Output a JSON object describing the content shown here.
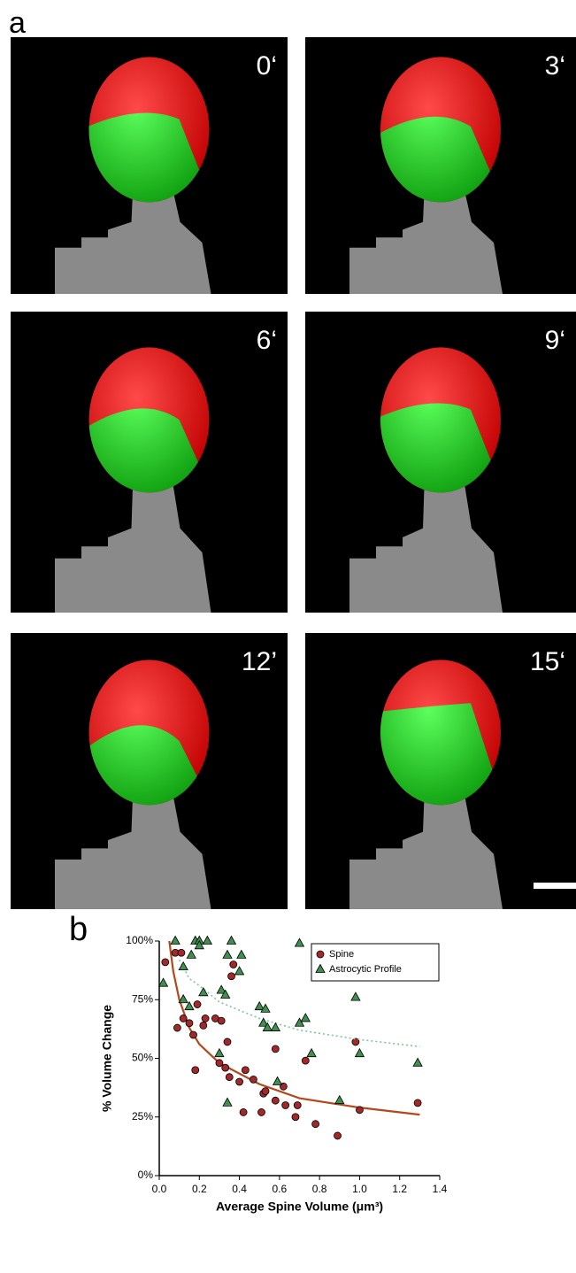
{
  "panel_labels": [
    "a",
    "b"
  ],
  "images": [
    {
      "label": "0‘"
    },
    {
      "label": "3‘"
    },
    {
      "label": "6‘"
    },
    {
      "label": "9‘"
    },
    {
      "label": "12’"
    },
    {
      "label": "15‘"
    }
  ],
  "chart_data": {
    "type": "scatter",
    "xlabel": "Average Spine Volume (μm³)",
    "ylabel": "% Volume Change",
    "xlim": [
      0,
      1.4
    ],
    "xticks": [
      {
        "value": 0,
        "label": "0.0"
      },
      0.2,
      0.4,
      0.6,
      0.8,
      {
        "value": 1,
        "label": "1.0"
      },
      1.2,
      1.4
    ],
    "ylim": [
      0,
      100
    ],
    "yticks": [
      {
        "value": 0,
        "label": "0%"
      },
      {
        "value": 25,
        "label": "25%"
      },
      {
        "value": 50,
        "label": "50%"
      },
      {
        "value": 75,
        "label": "75%"
      },
      {
        "value": 100,
        "label": "100%"
      }
    ],
    "legend": "upper right",
    "series": [
      {
        "name": "Spine",
        "color": "#a3282a",
        "marker": "circle",
        "x": [
          0.03,
          0.08,
          0.11,
          0.09,
          0.12,
          0.15,
          0.17,
          0.18,
          0.19,
          0.22,
          0.23,
          0.28,
          0.3,
          0.31,
          0.33,
          0.34,
          0.35,
          0.36,
          0.37,
          0.4,
          0.42,
          0.43,
          0.47,
          0.51,
          0.52,
          0.53,
          0.58,
          0.58,
          0.62,
          0.63,
          0.68,
          0.69,
          0.73,
          0.78,
          0.89,
          0.98,
          1.0,
          1.29
        ],
        "values": [
          91,
          95,
          95,
          63,
          67,
          65,
          60,
          45,
          73,
          64,
          67,
          67,
          48,
          66,
          46,
          57,
          42,
          85,
          90,
          40,
          27,
          45,
          41,
          27,
          35,
          36,
          54,
          32,
          38,
          30,
          25,
          30,
          49,
          22,
          17,
          57,
          28,
          31
        ],
        "fit": {
          "style": "solid",
          "x": [
            0.05,
            0.07,
            0.1,
            0.15,
            0.2,
            0.3,
            0.5,
            0.7,
            1.0,
            1.3
          ],
          "values": [
            100,
            87,
            75,
            63,
            56,
            48,
            39,
            33,
            29,
            26
          ]
        }
      },
      {
        "name": "Astrocytic Profile",
        "color": "#3f8f4e",
        "marker": "triangle",
        "x": [
          0.02,
          0.08,
          0.12,
          0.12,
          0.15,
          0.16,
          0.18,
          0.2,
          0.2,
          0.24,
          0.22,
          0.3,
          0.31,
          0.33,
          0.34,
          0.34,
          0.36,
          0.41,
          0.4,
          0.5,
          0.53,
          0.52,
          0.54,
          0.58,
          0.59,
          0.7,
          0.7,
          0.73,
          0.76,
          0.9,
          0.98,
          1.0,
          1.29
        ],
        "values": [
          82,
          100,
          89,
          75,
          72,
          94,
          100,
          100,
          98,
          100,
          78,
          52,
          79,
          77,
          31,
          94,
          100,
          94,
          87,
          72,
          71,
          65,
          63,
          63,
          40,
          99,
          65,
          67,
          52,
          32,
          76,
          52,
          48
        ],
        "fit": {
          "style": "dotted",
          "x": [
            0.1,
            0.15,
            0.2,
            0.3,
            0.5,
            0.7,
            1.0,
            1.3
          ],
          "values": [
            92,
            84,
            81,
            74,
            67,
            62,
            58,
            55
          ]
        }
      }
    ]
  }
}
